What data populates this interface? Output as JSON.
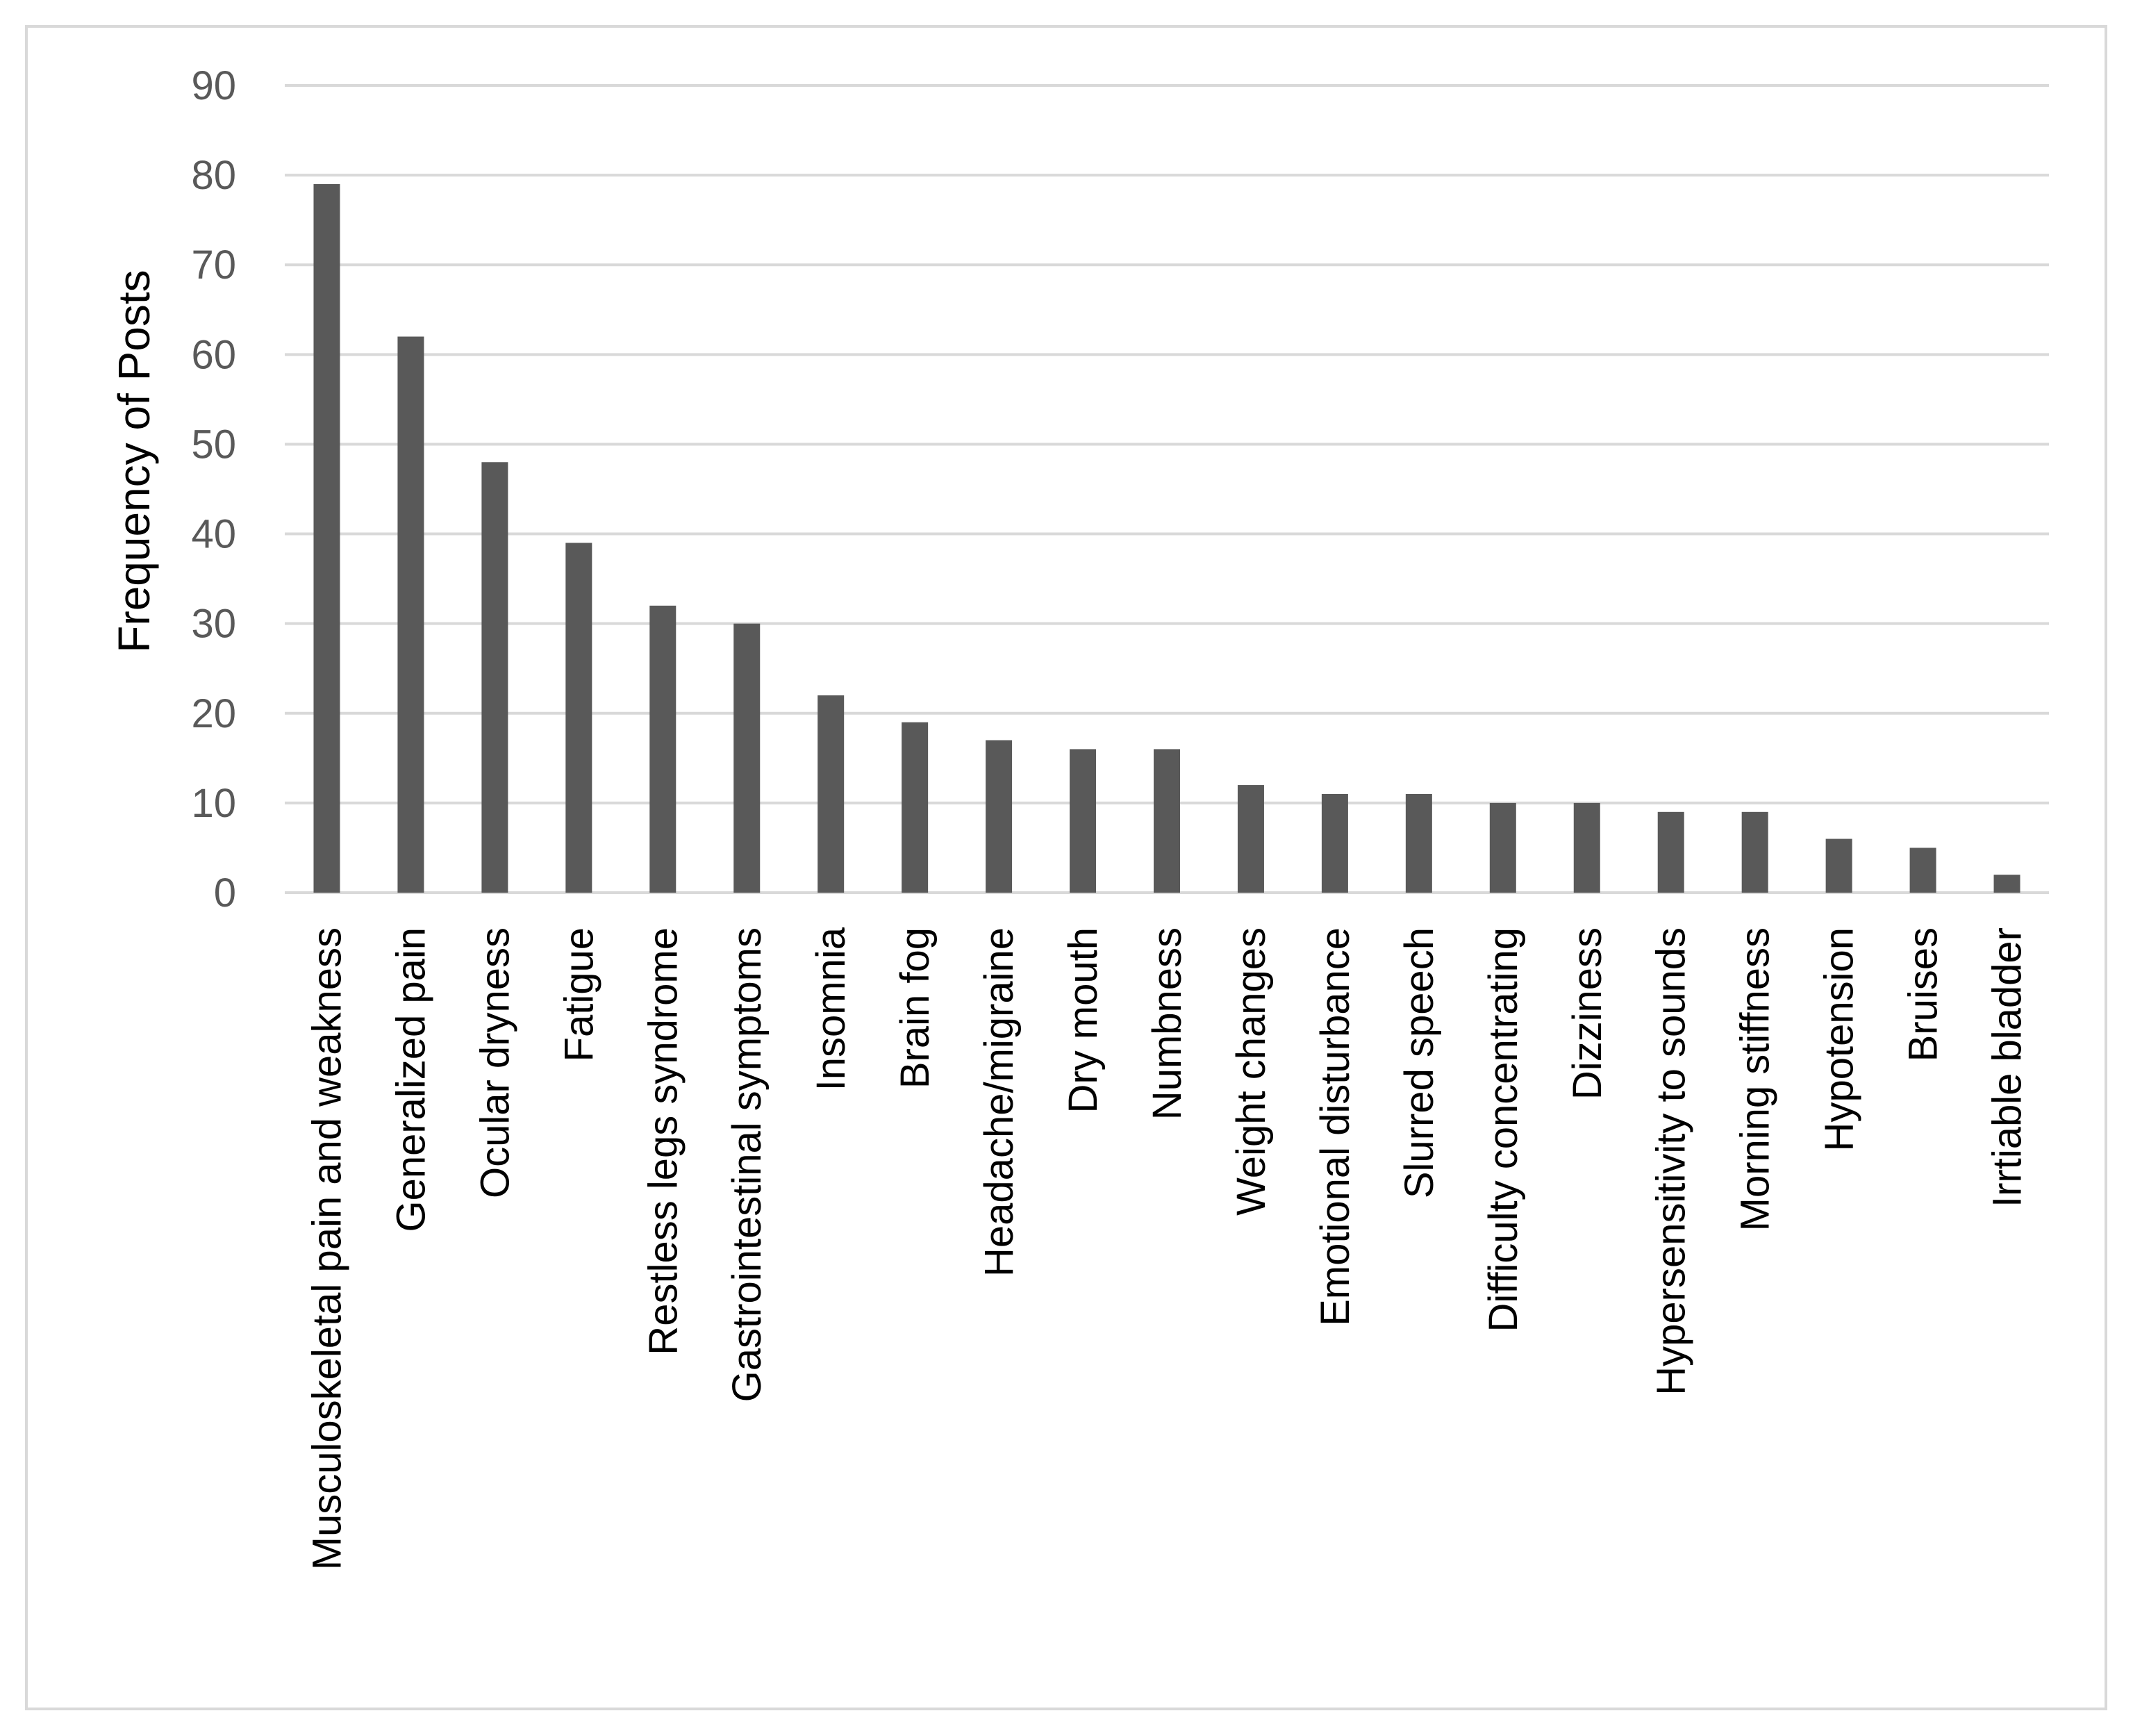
{
  "chart_data": {
    "type": "bar",
    "title": "",
    "xlabel": "",
    "ylabel": "Frequency of Posts",
    "ylim": [
      0,
      90
    ],
    "ytick_step": 10,
    "grid": true,
    "legend": "none",
    "bar_color": "#595959",
    "grid_color": "#d9d9d9",
    "categories": [
      "Musculoskeletal pain and weakness",
      "Generalized pain",
      "Ocular dryness",
      "Fatigue",
      "Restless legs syndrome",
      "Gastrointestinal symptoms",
      "Insomnia",
      "Brain fog",
      "Headache/migraine",
      "Dry mouth",
      "Numbness",
      "Weight changes",
      "Emotional disturbance",
      "Slurred speech",
      "Difficulty concentrating",
      "Dizziness",
      "Hypersensitivity to sounds",
      "Morning stiffness",
      "Hypotension",
      "Bruises",
      "Irrtiable bladder"
    ],
    "values": [
      79,
      62,
      48,
      39,
      32,
      30,
      22,
      19,
      17,
      16,
      16,
      12,
      11,
      11,
      10,
      10,
      9,
      9,
      6,
      5,
      2
    ]
  }
}
